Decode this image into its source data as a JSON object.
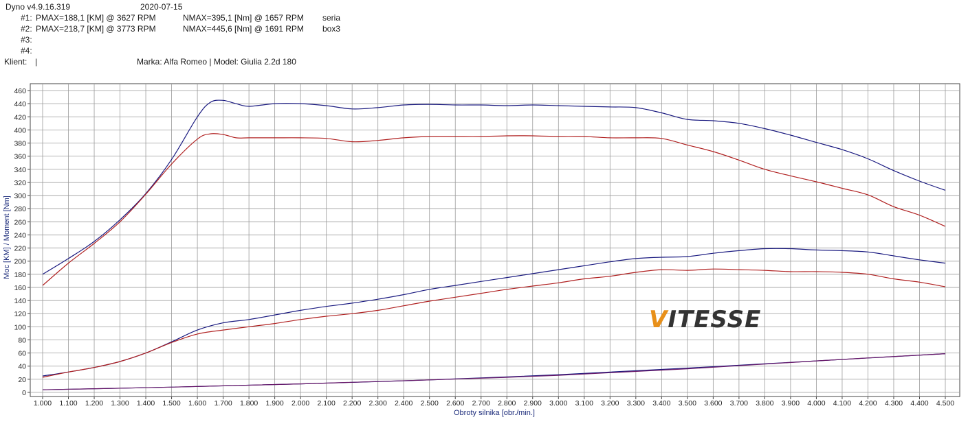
{
  "header": {
    "app": "Dyno v4.9.16.319",
    "date": "2020-07-15",
    "runs": [
      {
        "id": "#1:",
        "pmax": "PMAX=188,1 [KM] @ 3627 RPM",
        "nmax": "NMAX=395,1 [Nm] @ 1657 RPM",
        "name": "seria"
      },
      {
        "id": "#2:",
        "pmax": "PMAX=218,7 [KM] @ 3773 RPM",
        "nmax": "NMAX=445,6 [Nm] @ 1691 RPM",
        "name": "box3"
      },
      {
        "id": "#3:",
        "pmax": "",
        "nmax": "",
        "name": ""
      },
      {
        "id": "#4:",
        "pmax": "",
        "nmax": "",
        "name": ""
      }
    ],
    "client_label": "Klient:",
    "client_value": "|",
    "vehicle": "Marka: Alfa Romeo | Model: Giulia 2.2d 180"
  },
  "logo": {
    "first": "V",
    "rest": "ITESSE",
    "first_color": "#e8901a",
    "rest_color": "#333333"
  },
  "chart_data": {
    "type": "line",
    "xlabel": "Obroty silnika [obr./min.]",
    "ylabel": "Moc [KM] / Moment [Nm]",
    "xlim": [
      1000,
      4500
    ],
    "ylim": [
      0,
      460
    ],
    "x_ticks": [
      "1.000",
      "1.100",
      "1.200",
      "1.300",
      "1.400",
      "1.500",
      "1.600",
      "1.700",
      "1.800",
      "1.900",
      "2.000",
      "2.100",
      "2.200",
      "2.300",
      "2.400",
      "2.500",
      "2.600",
      "2.700",
      "2.800",
      "2.900",
      "3.000",
      "3.100",
      "3.200",
      "3.300",
      "3.400",
      "3.500",
      "3.600",
      "3.700",
      "3.800",
      "3.900",
      "4.000",
      "4.100",
      "4.200",
      "4.300",
      "4.400",
      "4.500"
    ],
    "y_ticks": [
      "0",
      "20",
      "40",
      "60",
      "80",
      "100",
      "120",
      "140",
      "160",
      "180",
      "200",
      "220",
      "240",
      "260",
      "280",
      "300",
      "320",
      "340",
      "360",
      "380",
      "400",
      "420",
      "440",
      "460"
    ],
    "grid": true,
    "colors": {
      "run1": "#b02020",
      "run2": "#1a1a80",
      "loss": "#6a1a6a"
    },
    "series": [
      {
        "run": "#2",
        "quantity": "torque",
        "color": "#1a1a80",
        "x": [
          1000,
          1100,
          1200,
          1300,
          1400,
          1500,
          1600,
          1650,
          1700,
          1750,
          1800,
          1900,
          2000,
          2100,
          2200,
          2300,
          2400,
          2500,
          2600,
          2700,
          2800,
          2900,
          3000,
          3100,
          3200,
          3300,
          3400,
          3500,
          3600,
          3700,
          3800,
          3900,
          4000,
          4100,
          4200,
          4300,
          4400,
          4500
        ],
        "y": [
          180,
          204,
          230,
          263,
          303,
          355,
          420,
          442,
          445,
          440,
          436,
          440,
          440,
          437,
          432,
          434,
          438,
          439,
          438,
          438,
          437,
          438,
          437,
          436,
          435,
          434,
          426,
          416,
          414,
          410,
          402,
          392,
          381,
          370,
          356,
          338,
          322,
          308
        ]
      },
      {
        "run": "#1",
        "quantity": "torque",
        "color": "#b02020",
        "x": [
          1000,
          1100,
          1200,
          1300,
          1400,
          1500,
          1600,
          1650,
          1700,
          1750,
          1800,
          1900,
          2000,
          2100,
          2200,
          2300,
          2400,
          2500,
          2600,
          2700,
          2800,
          2900,
          3000,
          3100,
          3200,
          3300,
          3400,
          3500,
          3600,
          3700,
          3800,
          3900,
          4000,
          4100,
          4200,
          4300,
          4400,
          4500
        ],
        "y": [
          163,
          197,
          227,
          260,
          302,
          348,
          386,
          394,
          393,
          388,
          388,
          388,
          388,
          387,
          382,
          384,
          388,
          390,
          390,
          390,
          391,
          391,
          390,
          390,
          388,
          388,
          387,
          377,
          367,
          354,
          340,
          330,
          321,
          311,
          301,
          283,
          270,
          253
        ]
      },
      {
        "run": "#2",
        "quantity": "power",
        "color": "#1a1a80",
        "x": [
          1000,
          1100,
          1200,
          1300,
          1400,
          1500,
          1600,
          1700,
          1800,
          1900,
          2000,
          2100,
          2200,
          2300,
          2400,
          2500,
          2600,
          2700,
          2800,
          2900,
          3000,
          3100,
          3200,
          3300,
          3400,
          3500,
          3600,
          3700,
          3800,
          3900,
          4000,
          4100,
          4200,
          4300,
          4400,
          4500
        ],
        "y": [
          25,
          31,
          38,
          47,
          60,
          77,
          95,
          106,
          111,
          118,
          125,
          131,
          136,
          142,
          149,
          157,
          163,
          169,
          175,
          181,
          187,
          193,
          199,
          204,
          206,
          207,
          212,
          216,
          219,
          219,
          217,
          216,
          214,
          208,
          202,
          197
        ]
      },
      {
        "run": "#1",
        "quantity": "power",
        "color": "#b02020",
        "x": [
          1000,
          1100,
          1200,
          1300,
          1400,
          1500,
          1600,
          1700,
          1800,
          1900,
          2000,
          2100,
          2200,
          2300,
          2400,
          2500,
          2600,
          2700,
          2800,
          2900,
          3000,
          3100,
          3200,
          3300,
          3400,
          3500,
          3600,
          3700,
          3800,
          3900,
          4000,
          4100,
          4200,
          4300,
          4400,
          4500
        ],
        "y": [
          23,
          31,
          38,
          47,
          60,
          76,
          89,
          95,
          100,
          105,
          111,
          116,
          120,
          125,
          132,
          139,
          145,
          151,
          157,
          162,
          167,
          173,
          177,
          183,
          187,
          186,
          188,
          187,
          186,
          184,
          184,
          183,
          180,
          173,
          168,
          161
        ]
      },
      {
        "run": "#2",
        "quantity": "loss",
        "color": "#1a1a80",
        "x": [
          1000,
          1500,
          2000,
          2500,
          3000,
          3500,
          4000,
          4500
        ],
        "y": [
          4,
          8,
          13,
          19,
          27,
          37,
          48,
          59
        ]
      },
      {
        "run": "#1",
        "quantity": "loss",
        "color": "#6a1a6a",
        "x": [
          1000,
          1500,
          2000,
          2500,
          3000,
          3500,
          4000,
          4500
        ],
        "y": [
          4,
          8,
          13,
          19,
          26,
          36,
          48,
          59
        ]
      }
    ]
  }
}
